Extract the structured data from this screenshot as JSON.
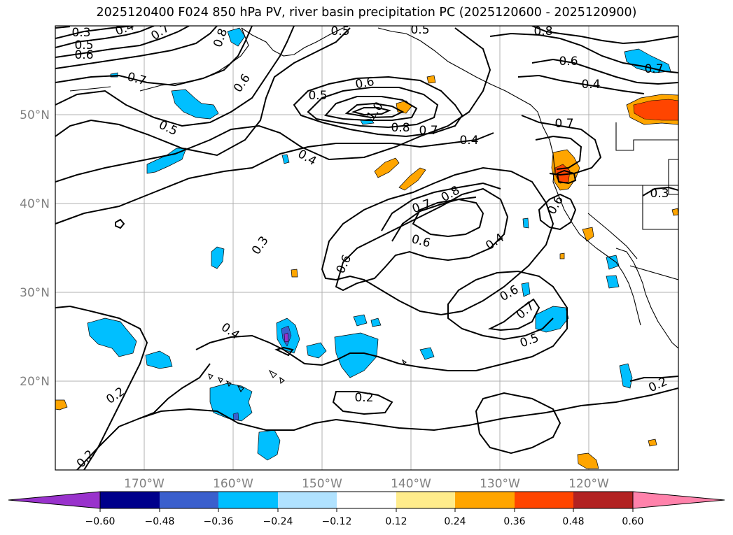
{
  "title": "2025120400 F024 850 hPa PV, river basin precipitation PC (2025120600 - 2025120900)",
  "axes": {
    "lon_labels": [
      "170°W",
      "160°W",
      "150°W",
      "140°W",
      "130°W",
      "120°W"
    ],
    "lat_labels": [
      "50°N",
      "40°N",
      "30°N",
      "20°N"
    ],
    "label_color": "#808080"
  },
  "contour_labels": [
    "0.3",
    "0.5",
    "0.6",
    "0.4",
    "0.7",
    "0.5",
    "0.8",
    "0.5",
    "0.6",
    "0.8",
    "0.7",
    "0.6",
    "0.7",
    "0.4",
    "0.5",
    "0.6",
    "1.0",
    "0.8",
    "0.7",
    "0.4",
    "0.5",
    "0.4",
    "0.7",
    "0.3",
    "0.7",
    "0.8",
    "0.6",
    "0.6",
    "0.4",
    "0.6",
    "0.6",
    "0.7",
    "0.5",
    "0.4",
    "0.2",
    "0.2",
    "0.2",
    "0.2",
    "0.3"
  ],
  "colorbar": {
    "colors": [
      "#9932cc",
      "#00008b",
      "#3a5fcd",
      "#00bfff",
      "#b0e2ff",
      "#ffffff",
      "#ffec8b",
      "#ffa500",
      "#ff4500",
      "#b22222",
      "#ff82ab"
    ],
    "tick_labels": [
      "−0.60",
      "−0.48",
      "−0.36",
      "−0.24",
      "−0.12",
      "0.12",
      "0.24",
      "0.36",
      "0.48",
      "0.60"
    ]
  },
  "colors": {
    "contour": "#000000",
    "pos_low": "#ffa500",
    "pos_mid": "#ff4500",
    "neg_low": "#00bfff",
    "neg_mid": "#3a5fcd",
    "neg_high": "#9932cc"
  }
}
